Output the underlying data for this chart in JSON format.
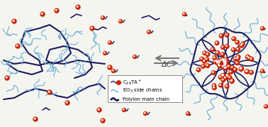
{
  "background_color": "#f5f5f0",
  "dark_blue": "#1a1a5e",
  "light_blue": "#6baed6",
  "red_sphere": "#cc2200",
  "white_sphere": "#ffffff",
  "arrow_color": "#888888",
  "delta_c_text": "ΔC",
  "legend_items": [
    {
      "label": "C₁₆TA⁺",
      "color_line": "#1a1a5e",
      "has_dot": true
    },
    {
      "label": "EO₃ side chains",
      "color_line": "#6baed6",
      "has_dot": false
    },
    {
      "label": "Polyion main chain",
      "color_line": "#1a1a5e",
      "has_dot": false,
      "thick": true
    }
  ],
  "figsize": [
    3.78,
    1.79
  ],
  "dpi": 100
}
